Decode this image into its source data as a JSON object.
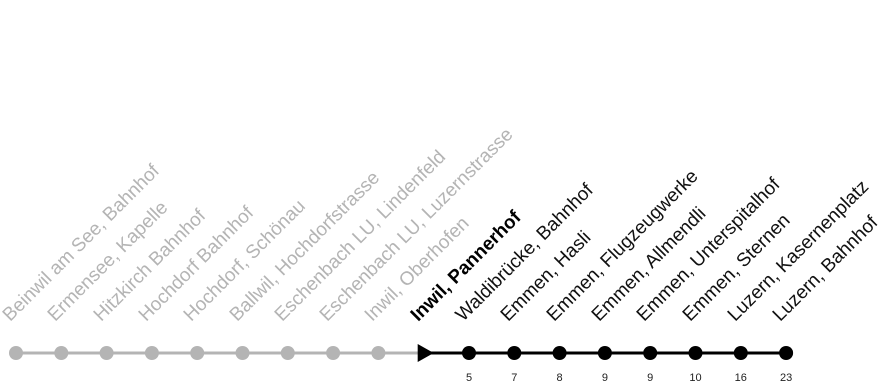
{
  "colors": {
    "past": "#b4b4b4",
    "future": "#000000"
  },
  "current_stop_index": 9,
  "stops": [
    {
      "name": "Beinwil am See, Bahnhof",
      "status": "past",
      "minutes": ""
    },
    {
      "name": "Ermensee, Kapelle",
      "status": "past",
      "minutes": ""
    },
    {
      "name": "Hitzkirch Bahnhof",
      "status": "past",
      "minutes": ""
    },
    {
      "name": "Hochdorf Bahnhof",
      "status": "past",
      "minutes": ""
    },
    {
      "name": "Hochdorf, Schönau",
      "status": "past",
      "minutes": ""
    },
    {
      "name": "Ballwil, Hochdorfstrasse",
      "status": "past",
      "minutes": ""
    },
    {
      "name": "Eschenbach LU, Lindenfeld",
      "status": "past",
      "minutes": ""
    },
    {
      "name": "Eschenbach LU, Luzernstrasse",
      "status": "past",
      "minutes": ""
    },
    {
      "name": "Inwil, Oberhofen",
      "status": "past",
      "minutes": ""
    },
    {
      "name": "Inwil, Pannerhof",
      "status": "current",
      "minutes": ""
    },
    {
      "name": "Waldibrücke, Bahnhof",
      "status": "future",
      "minutes": "5"
    },
    {
      "name": "Emmen, Hasli",
      "status": "future",
      "minutes": "7"
    },
    {
      "name": "Emmen, Flugzeugwerke",
      "status": "future",
      "minutes": "8"
    },
    {
      "name": "Emmen, Allmendli",
      "status": "future",
      "minutes": "9"
    },
    {
      "name": "Emmen, Unterspitalhof",
      "status": "future",
      "minutes": "9"
    },
    {
      "name": "Emmen, Sternen",
      "status": "future",
      "minutes": "10"
    },
    {
      "name": "Luzern, Kasernenplatz",
      "status": "future",
      "minutes": "16"
    },
    {
      "name": "Luzern, Bahnhof",
      "status": "future",
      "minutes": "23"
    }
  ]
}
